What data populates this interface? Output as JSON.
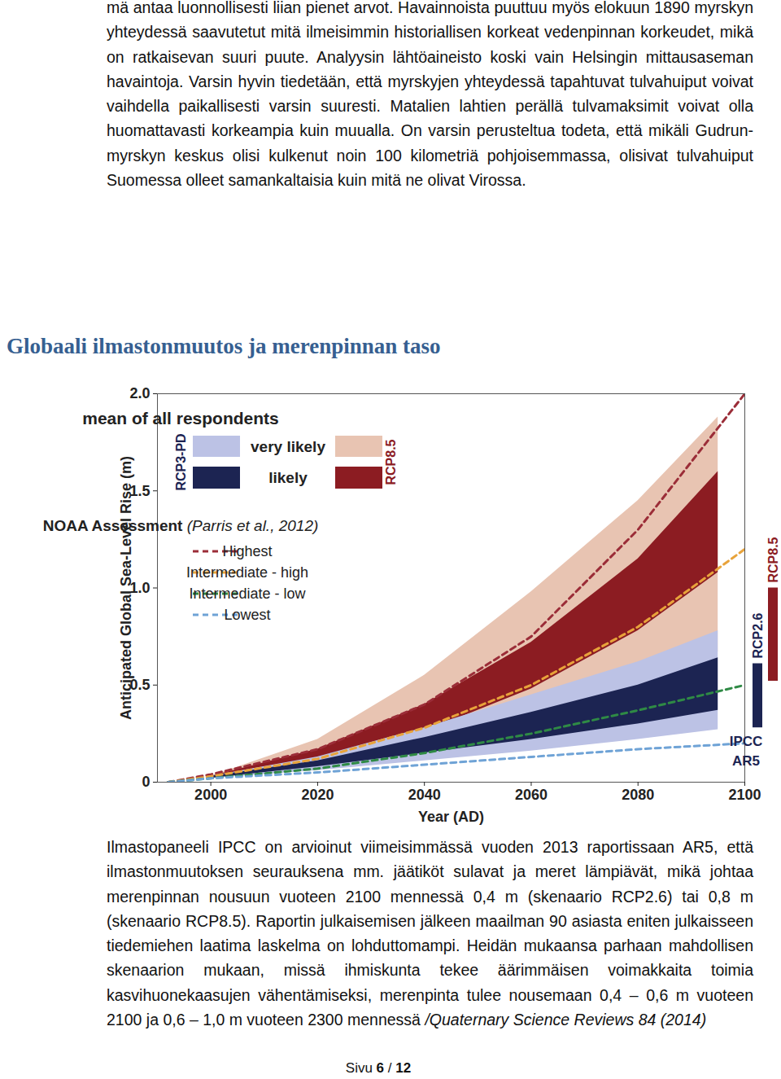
{
  "paragraphs": [
    "mä antaa luonnollisesti liian pienet arvot. Havainnoista puuttuu myös elokuun 1890 myrskyn yhteydessä saavutetut mitä ilmeisimmin historiallisen korkeat vedenpinnan korkeudet, mikä on ratkaisevan suuri puute. Analyysin lähtöaineisto koski vain Helsingin mittausaseman havaintoja. Varsin hyvin tiedetään, että myrskyjen yhteydessä tapahtuvat tulvahuiput voivat vaihdella paikallisesti varsin suuresti. Matalien lahtien perällä tulvamaksimit voivat olla huomattavasti korkeampia kuin muualla. On varsin perusteltua todeta, että mikäli Gudrun-myrskyn keskus olisi kulkenut noin 100 kilometriä pohjoisemmassa, olisivat tulvahuiput Suomessa olleet samankaltaisia kuin mitä ne olivat Virossa."
  ],
  "heading": "Globaali ilmastonmuutos ja merenpinnan taso",
  "chart_data": {
    "type": "area_band",
    "xlabel": "Year (AD)",
    "ylabel": "Anticipated Global Sea-Level Rise (m)",
    "xlim": [
      1990,
      2100
    ],
    "ylim": [
      0,
      2
    ],
    "xticks": [
      2000,
      2020,
      2040,
      2060,
      2080,
      2100
    ],
    "yticks": [
      0,
      0.5,
      {
        "value": 1,
        "label": "1.0"
      },
      1.5,
      {
        "value": 2,
        "label": "2.0"
      }
    ],
    "band_legend": {
      "title": "mean of all respondents",
      "levels": [
        "very likely",
        "likely"
      ],
      "scenarios": [
        "RCP3-PD",
        "RCP8.5"
      ]
    },
    "bands": [
      {
        "name": "RCP8.5",
        "level": "very likely",
        "color": "#e8c4b2",
        "x": [
          2000,
          2020,
          2040,
          2060,
          2080,
          2095
        ],
        "lower": [
          0.02,
          0.08,
          0.18,
          0.32,
          0.5,
          0.67
        ],
        "upper": [
          0.03,
          0.22,
          0.55,
          0.98,
          1.45,
          1.88
        ]
      },
      {
        "name": "RCP8.5",
        "level": "likely",
        "color": "#8c1c22",
        "x": [
          2000,
          2020,
          2040,
          2060,
          2080,
          2095
        ],
        "lower": [
          0.02,
          0.11,
          0.26,
          0.48,
          0.78,
          1.08
        ],
        "upper": [
          0.03,
          0.17,
          0.4,
          0.72,
          1.15,
          1.6
        ]
      },
      {
        "name": "RCP3-PD",
        "level": "very likely",
        "color": "#bcc2e5",
        "x": [
          2000,
          2020,
          2040,
          2060,
          2080,
          2095
        ],
        "lower": [
          0.02,
          0.06,
          0.11,
          0.16,
          0.22,
          0.27
        ],
        "upper": [
          0.03,
          0.13,
          0.28,
          0.45,
          0.62,
          0.78
        ]
      },
      {
        "name": "RCP3-PD",
        "level": "likely",
        "color": "#1c2452",
        "x": [
          2000,
          2020,
          2040,
          2060,
          2080,
          2095
        ],
        "lower": [
          0.02,
          0.08,
          0.15,
          0.22,
          0.3,
          0.37
        ],
        "upper": [
          0.03,
          0.11,
          0.23,
          0.36,
          0.5,
          0.64
        ]
      }
    ],
    "lines_legend": {
      "title": "NOAA Assessment",
      "citation": "(Parris et al., 2012)"
    },
    "series": [
      {
        "name": "Highest",
        "color": "#9b2d38",
        "line_style": "dashed",
        "x": [
          1992,
          2000,
          2020,
          2040,
          2060,
          2080,
          2100
        ],
        "values": [
          0,
          0.04,
          0.17,
          0.4,
          0.75,
          1.3,
          2.0
        ]
      },
      {
        "name": "Intermediate - high",
        "color": "#e8a33b",
        "line_style": "dashed",
        "x": [
          1992,
          2000,
          2020,
          2040,
          2060,
          2080,
          2100
        ],
        "values": [
          0,
          0.03,
          0.12,
          0.28,
          0.5,
          0.8,
          1.2
        ]
      },
      {
        "name": "Intermediate - low",
        "color": "#2f8a45",
        "line_style": "dashed",
        "x": [
          1992,
          2000,
          2020,
          2040,
          2060,
          2080,
          2100
        ],
        "values": [
          0,
          0.02,
          0.07,
          0.15,
          0.25,
          0.37,
          0.5
        ]
      },
      {
        "name": "Lowest",
        "color": "#6fa3d6",
        "line_style": "dashed",
        "x": [
          1992,
          2000,
          2020,
          2040,
          2060,
          2080,
          2100
        ],
        "values": [
          0,
          0.02,
          0.05,
          0.09,
          0.13,
          0.17,
          0.2
        ]
      }
    ],
    "side_bars": {
      "title": "IPCC AR5",
      "bars": [
        {
          "name": "RCP2.6",
          "color": "#1c2452",
          "low": 0.28,
          "high": 0.61
        },
        {
          "name": "RCP8.5",
          "color": "#8c1c22",
          "low": 0.52,
          "high": 1.0
        }
      ]
    }
  },
  "caption": {
    "text": "Ilmastopaneeli IPCC on arvioinut viimeisimmässä vuoden 2013 raportissaan AR5, että ilmastonmuutoksen seurauksena mm. jäätiköt sulavat ja meret lämpiävät, mikä johtaa merenpinnan nousuun vuoteen 2100 mennessä 0,4 m (skenaario RCP2.6) tai 0,8 m (skenaario RCP8.5). Raportin julkaisemisen jälkeen maailman 90 asiasta eniten julkaisseen tiedemiehen laatima laskelma on lohduttomampi. Heidän mukaansa parhaan mahdollisen skenaarion mukaan, missä ihmiskunta tekee äärimmäisen voimakkaita toimia kasvihuonekaasujen vähentämiseksi, merenpinta tulee nousemaan 0,4 – 0,6 m vuoteen 2100 ja 0,6 – 1,0 m vuoteen 2300 mennessä",
    "citation": "/Quaternary Science Reviews 84 (2014)"
  },
  "footer": {
    "label": "Sivu",
    "page": "6",
    "separator": "/",
    "total": "12"
  }
}
